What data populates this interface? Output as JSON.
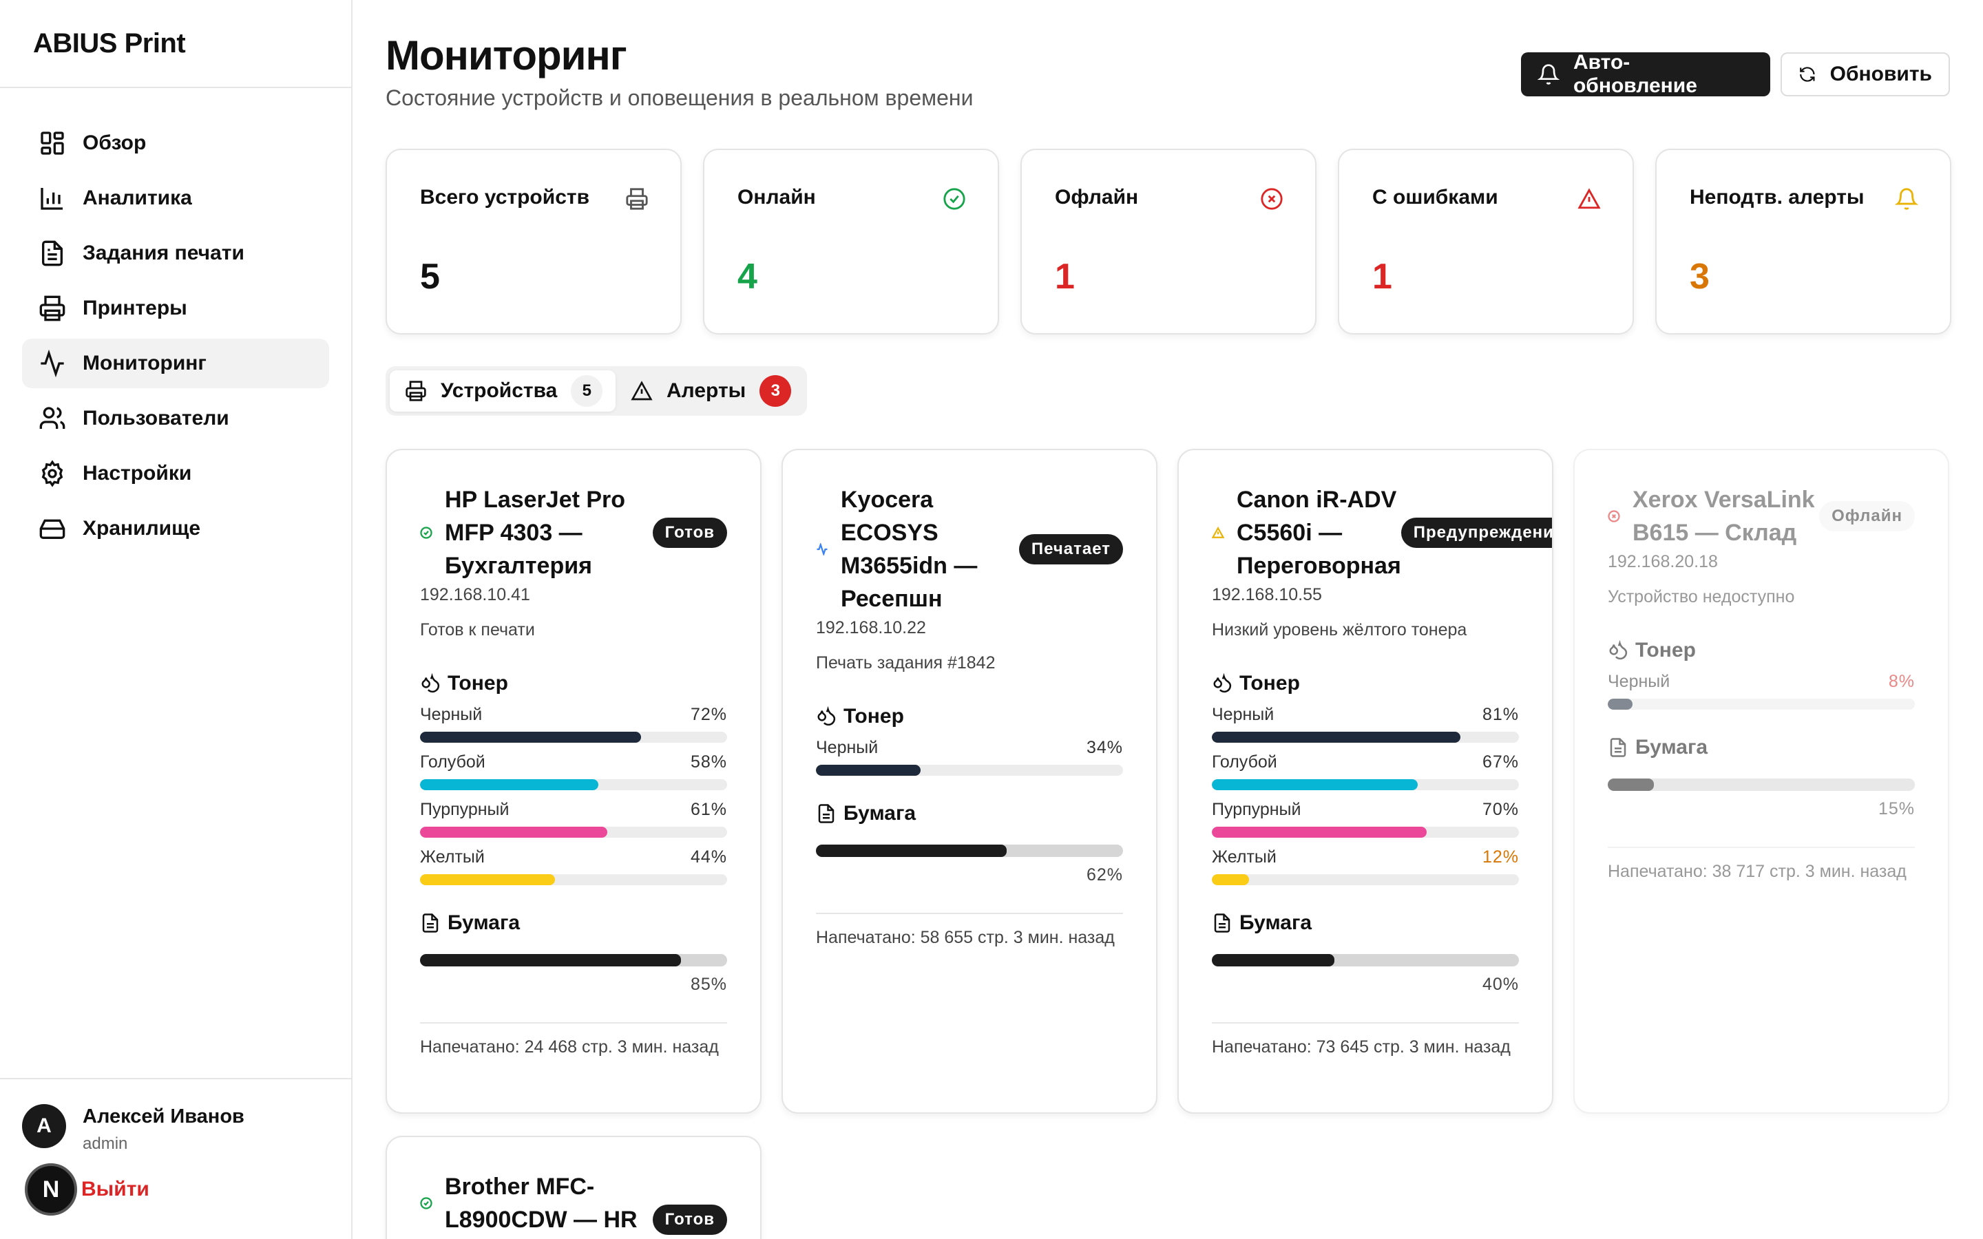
{
  "brand": "ABIUS Print",
  "nav": [
    {
      "label": "Обзор",
      "icon": "dashboard-icon"
    },
    {
      "label": "Аналитика",
      "icon": "bar-chart-icon"
    },
    {
      "label": "Задания печати",
      "icon": "document-icon"
    },
    {
      "label": "Принтеры",
      "icon": "printer-icon"
    },
    {
      "label": "Мониторинг",
      "icon": "activity-icon",
      "active": true
    },
    {
      "label": "Пользователи",
      "icon": "users-icon"
    },
    {
      "label": "Настройки",
      "icon": "gear-icon"
    },
    {
      "label": "Хранилище",
      "icon": "storage-icon"
    }
  ],
  "user": {
    "initial": "A",
    "name": "Алексей Иванов",
    "role": "admin",
    "n_badge": "N",
    "logout": "Выйти"
  },
  "header": {
    "title": "Мониторинг",
    "subtitle": "Состояние устройств и оповещения в реальном времени",
    "auto_refresh": "Авто-обновление",
    "refresh": "Обновить"
  },
  "stats": [
    {
      "label": "Всего устройств",
      "value": "5",
      "color": "#111111",
      "icon": "printer-icon"
    },
    {
      "label": "Онлайн",
      "value": "4",
      "color": "#16a34a",
      "icon": "check-circle-icon"
    },
    {
      "label": "Офлайн",
      "value": "1",
      "color": "#dc2626",
      "icon": "x-circle-icon"
    },
    {
      "label": "С ошибками",
      "value": "1",
      "color": "#dc2626",
      "icon": "warning-icon"
    },
    {
      "label": "Неподтв. алерты",
      "value": "3",
      "color": "#d97706",
      "icon": "bell-icon"
    }
  ],
  "tabs": {
    "devices": "Устройства",
    "devices_count": "5",
    "alerts": "Алерты",
    "alerts_count": "3"
  },
  "labels": {
    "toner": "Тонер",
    "paper": "Бумага"
  },
  "devices": [
    {
      "name": "HP LaserJet Pro MFP 4303 — Бухгалтерия",
      "status": "Готов",
      "status_icon": "check-circle-icon",
      "ip": "192.168.10.41",
      "message": "Готов к печати",
      "toner": [
        {
          "name": "Черный",
          "value": 72,
          "pct": "72%",
          "color": "#1e293b"
        },
        {
          "name": "Голубой",
          "value": 58,
          "pct": "58%",
          "color": "#06b6d4"
        },
        {
          "name": "Пурпурный",
          "value": 61,
          "pct": "61%",
          "color": "#ec4899"
        },
        {
          "name": "Желтый",
          "value": 44,
          "pct": "44%",
          "color": "#facc15"
        }
      ],
      "paper": {
        "value": 85,
        "pct": "85%"
      },
      "footer": "Напечатано: 24 468 стр.  3 мин. назад"
    },
    {
      "name": "Kyocera ECOSYS M3655idn — Ресепшн",
      "status": "Печатает",
      "status_icon": "activity-icon",
      "ip": "192.168.10.22",
      "message": "Печать задания #1842",
      "toner": [
        {
          "name": "Черный",
          "value": 34,
          "pct": "34%",
          "color": "#1e293b"
        }
      ],
      "paper": {
        "value": 62,
        "pct": "62%"
      },
      "footer": "Напечатано: 58 655 стр.  3 мин. назад"
    },
    {
      "name": "Canon iR-ADV C5560i — Переговорная",
      "status": "Предупреждение",
      "status_icon": "warning-icon",
      "ip": "192.168.10.55",
      "message": "Низкий уровень жёлтого тонера",
      "toner": [
        {
          "name": "Черный",
          "value": 81,
          "pct": "81%",
          "color": "#1e293b"
        },
        {
          "name": "Голубой",
          "value": 67,
          "pct": "67%",
          "color": "#06b6d4"
        },
        {
          "name": "Пурпурный",
          "value": 70,
          "pct": "70%",
          "color": "#ec4899"
        },
        {
          "name": "Желтый",
          "value": 12,
          "pct": "12%",
          "color": "#facc15",
          "low": true
        }
      ],
      "paper": {
        "value": 40,
        "pct": "40%"
      },
      "footer": "Напечатано: 73 645 стр.  3 мин. назад"
    },
    {
      "name": "Xerox VersaLink B615 — Склад",
      "status": "Офлайн",
      "status_icon": "x-circle-icon",
      "ip": "192.168.20.18",
      "message": "Устройство недоступно",
      "toner": [
        {
          "name": "Черный",
          "value": 8,
          "pct": "8%",
          "color": "#1e293b",
          "low": true
        }
      ],
      "paper": {
        "value": 15,
        "pct": "15%"
      },
      "footer": "Напечатано: 38 717 стр.  3 мин. назад"
    },
    {
      "name": "Brother MFC-L8900CDW — HR",
      "status": "Готов",
      "status_icon": "check-circle-icon"
    }
  ]
}
